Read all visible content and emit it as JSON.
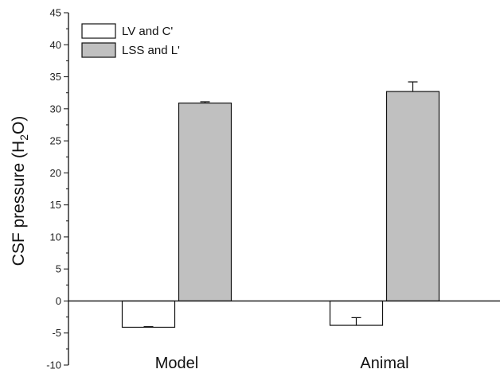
{
  "chart_data": {
    "type": "bar",
    "categories": [
      "Model",
      "Animal"
    ],
    "series": [
      {
        "name": "LV and C'",
        "values": [
          -4.1,
          -3.8
        ],
        "error": [
          0.1,
          1.2
        ],
        "color": "#ffffff"
      },
      {
        "name": "LSS and L'",
        "values": [
          30.9,
          32.7
        ],
        "error": [
          0.2,
          1.5
        ],
        "color": "#c0c0c0"
      }
    ],
    "ylabel": {
      "main": "CSF pressure (H",
      "sub": "2",
      "tail": "O)"
    },
    "xlabel": "",
    "ylim": [
      -10,
      45
    ],
    "yticks": [
      "-10",
      "-5",
      "0",
      "5",
      "10",
      "15",
      "20",
      "25",
      "30",
      "35",
      "40",
      "45"
    ],
    "legend_position": "top-left",
    "grid": false
  }
}
